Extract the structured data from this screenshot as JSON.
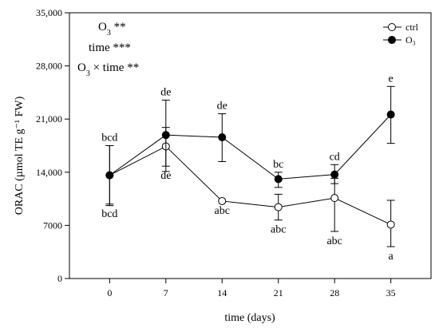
{
  "chart_data": {
    "type": "line",
    "title": "",
    "xlabel": "time (days)",
    "ylabel": "ORAC (µmol TE g⁻¹ FW)",
    "x": [
      0,
      7,
      14,
      21,
      28,
      35
    ],
    "xlim": [
      -5,
      40
    ],
    "ylim": [
      0,
      35000
    ],
    "y_ticks": [
      0,
      7000,
      14000,
      21000,
      28000,
      35000
    ],
    "y_tick_labels": [
      "0",
      "7000",
      "14,000",
      "21,000",
      "28,000",
      "35,000"
    ],
    "x_tick_labels": [
      "0",
      "7",
      "14",
      "21",
      "28",
      "35"
    ],
    "grid": false,
    "legend_position": "top-right",
    "series": [
      {
        "name": "ctrl",
        "marker": "open-circle",
        "values": [
          13600,
          17400,
          10200,
          9400,
          10600,
          7100
        ],
        "error_low": [
          9800,
          14800,
          10200,
          7700,
          6200,
          4200
        ],
        "error_high": [
          17500,
          19900,
          10200,
          11100,
          13200,
          10300
        ],
        "point_labels": [
          "bcd",
          "de",
          "abc",
          "abc",
          "abc",
          "a"
        ]
      },
      {
        "name": "O₃",
        "marker": "filled-circle",
        "values": [
          13600,
          18900,
          18600,
          13100,
          13700,
          21600
        ],
        "error_low": [
          9600,
          14100,
          15400,
          12000,
          12500,
          17800
        ],
        "error_high": [
          17500,
          23500,
          21700,
          14000,
          15000,
          25300
        ],
        "point_labels": [
          "bcd",
          "de",
          "de",
          "bc",
          "cd",
          "e"
        ]
      }
    ],
    "annotations": [
      {
        "base": "O",
        "sub": "3",
        "rest": " **"
      },
      {
        "base": "time ***",
        "sub": "",
        "rest": ""
      },
      {
        "base": "O",
        "sub": "3",
        "rest": " × time **"
      }
    ]
  }
}
